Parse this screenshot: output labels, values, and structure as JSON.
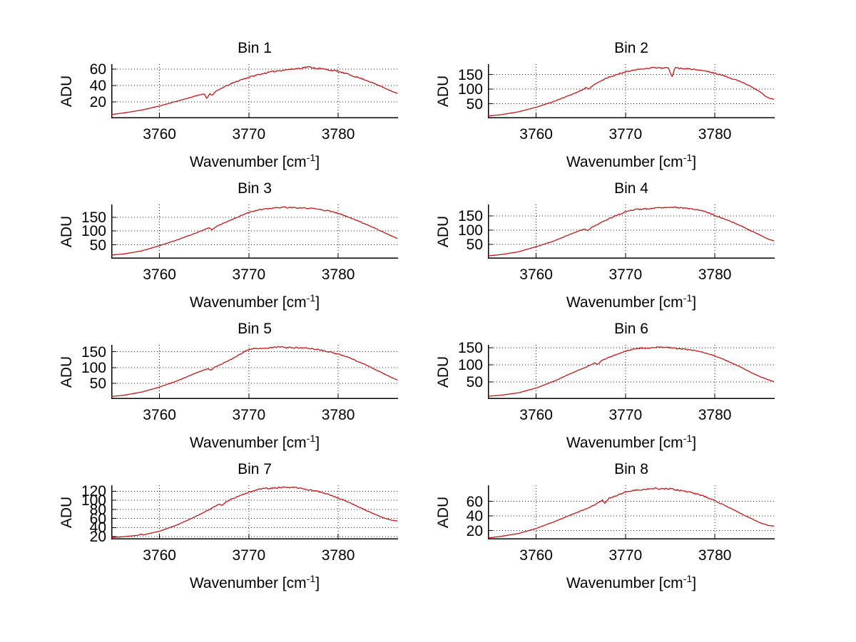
{
  "figure": {
    "background": "#ffffff",
    "line_color": "#c01616",
    "grid_color": "#000000",
    "text_color": "#000000",
    "ylabel": "ADU",
    "xlabel_prefix": "Wavenumber [cm",
    "xlabel_sup": "-1",
    "xlabel_suffix": "]",
    "x_ticks": [
      3760,
      3770,
      3780
    ],
    "x_range": [
      3754.6,
      3786.7
    ],
    "grid_style": "dotted",
    "layout": "4x2 subplots"
  },
  "chart_data": [
    {
      "type": "line",
      "title": "Bin 1",
      "ylabel": "ADU",
      "xlabel": "Wavenumber [cm^-1]",
      "x_range": [
        3754.6,
        3786.7
      ],
      "x_ticks": [
        3760,
        3770,
        3780
      ],
      "y_range": [
        0,
        66
      ],
      "y_ticks": [
        20,
        40,
        60
      ],
      "grid": true,
      "noise": 1.0,
      "seed": 11,
      "points": [
        [
          3754.6,
          4.5
        ],
        [
          3756,
          6.5
        ],
        [
          3758,
          10
        ],
        [
          3760,
          15
        ],
        [
          3762,
          21
        ],
        [
          3764,
          27
        ],
        [
          3765,
          30
        ],
        [
          3765.3,
          24
        ],
        [
          3765.6,
          30
        ],
        [
          3765.9,
          28
        ],
        [
          3766.2,
          32
        ],
        [
          3767,
          37
        ],
        [
          3768,
          42
        ],
        [
          3769,
          46.5
        ],
        [
          3770,
          50
        ],
        [
          3771,
          53
        ],
        [
          3772,
          55.5
        ],
        [
          3773,
          57.5
        ],
        [
          3774,
          59
        ],
        [
          3775,
          60
        ],
        [
          3776,
          61.5
        ],
        [
          3776.6,
          62.5
        ],
        [
          3777.3,
          61.5
        ],
        [
          3778,
          60.5
        ],
        [
          3779,
          59
        ],
        [
          3780,
          57
        ],
        [
          3781,
          54
        ],
        [
          3782,
          50.5
        ],
        [
          3783,
          47
        ],
        [
          3784,
          42.5
        ],
        [
          3785,
          38
        ],
        [
          3786,
          33
        ],
        [
          3786.7,
          30
        ]
      ]
    },
    {
      "type": "line",
      "title": "Bin 2",
      "ylabel": "ADU",
      "xlabel": "Wavenumber [cm^-1]",
      "x_range": [
        3754.6,
        3786.7
      ],
      "x_ticks": [
        3760,
        3770,
        3780
      ],
      "y_range": [
        0,
        186
      ],
      "y_ticks": [
        50,
        100,
        150
      ],
      "grid": true,
      "noise": 2.2,
      "seed": 23,
      "points": [
        [
          3754.6,
          8
        ],
        [
          3756,
          12
        ],
        [
          3758,
          22
        ],
        [
          3760,
          38
        ],
        [
          3762,
          58
        ],
        [
          3764,
          82
        ],
        [
          3765.2,
          98
        ],
        [
          3765.6,
          106
        ],
        [
          3765.9,
          99
        ],
        [
          3766.3,
          112
        ],
        [
          3767,
          124
        ],
        [
          3768,
          140
        ],
        [
          3769,
          150
        ],
        [
          3770,
          160
        ],
        [
          3771,
          166
        ],
        [
          3772,
          170
        ],
        [
          3773,
          174
        ],
        [
          3774,
          172
        ],
        [
          3774.8,
          174
        ],
        [
          3775.2,
          140
        ],
        [
          3775.5,
          173
        ],
        [
          3776,
          172
        ],
        [
          3777,
          170
        ],
        [
          3778,
          167
        ],
        [
          3779,
          162
        ],
        [
          3780,
          155
        ],
        [
          3781,
          146
        ],
        [
          3782,
          136
        ],
        [
          3783,
          124
        ],
        [
          3784,
          110
        ],
        [
          3785,
          92
        ],
        [
          3785.7,
          75
        ],
        [
          3786.2,
          68
        ],
        [
          3786.7,
          65
        ]
      ]
    },
    {
      "type": "line",
      "title": "Bin 3",
      "ylabel": "ADU",
      "xlabel": "Wavenumber [cm^-1]",
      "x_range": [
        3754.6,
        3786.7
      ],
      "x_ticks": [
        3760,
        3770,
        3780
      ],
      "y_range": [
        0,
        196
      ],
      "y_ticks": [
        50,
        100,
        150
      ],
      "grid": true,
      "noise": 2.2,
      "seed": 37,
      "points": [
        [
          3754.6,
          13
        ],
        [
          3756,
          17
        ],
        [
          3758,
          28
        ],
        [
          3760,
          47
        ],
        [
          3762,
          68
        ],
        [
          3764,
          92
        ],
        [
          3765.5,
          112
        ],
        [
          3765.9,
          104
        ],
        [
          3766.3,
          116
        ],
        [
          3767,
          126
        ],
        [
          3768,
          140
        ],
        [
          3769,
          155
        ],
        [
          3770,
          168
        ],
        [
          3771,
          176
        ],
        [
          3772,
          180
        ],
        [
          3773,
          184
        ],
        [
          3774,
          186
        ],
        [
          3775,
          184
        ],
        [
          3776,
          183
        ],
        [
          3777,
          182
        ],
        [
          3778,
          178
        ],
        [
          3779,
          172
        ],
        [
          3780,
          164
        ],
        [
          3781,
          152
        ],
        [
          3782,
          140
        ],
        [
          3783,
          126
        ],
        [
          3784,
          112
        ],
        [
          3785,
          97
        ],
        [
          3786,
          82
        ],
        [
          3786.7,
          72
        ]
      ]
    },
    {
      "type": "line",
      "title": "Bin 4",
      "ylabel": "ADU",
      "xlabel": "Wavenumber [cm^-1]",
      "x_range": [
        3754.6,
        3786.7
      ],
      "x_ticks": [
        3760,
        3770,
        3780
      ],
      "y_range": [
        0,
        190
      ],
      "y_ticks": [
        50,
        100,
        150
      ],
      "grid": true,
      "noise": 2.2,
      "seed": 41,
      "points": [
        [
          3754.6,
          10
        ],
        [
          3756,
          14
        ],
        [
          3758,
          24
        ],
        [
          3760,
          42
        ],
        [
          3762,
          62
        ],
        [
          3764,
          88
        ],
        [
          3765.4,
          104
        ],
        [
          3765.8,
          98
        ],
        [
          3766.2,
          110
        ],
        [
          3767,
          122
        ],
        [
          3768,
          138
        ],
        [
          3769,
          152
        ],
        [
          3770,
          164
        ],
        [
          3771,
          172
        ],
        [
          3772,
          174
        ],
        [
          3773,
          177
        ],
        [
          3774,
          179
        ],
        [
          3775,
          181
        ],
        [
          3776,
          179
        ],
        [
          3777,
          176
        ],
        [
          3778,
          172
        ],
        [
          3779,
          164
        ],
        [
          3780,
          152
        ],
        [
          3781,
          140
        ],
        [
          3782,
          128
        ],
        [
          3783,
          114
        ],
        [
          3784,
          98
        ],
        [
          3785,
          84
        ],
        [
          3786,
          68
        ],
        [
          3786.7,
          62
        ]
      ]
    },
    {
      "type": "line",
      "title": "Bin 5",
      "ylabel": "ADU",
      "xlabel": "Wavenumber [cm^-1]",
      "x_range": [
        3754.6,
        3786.7
      ],
      "x_ticks": [
        3760,
        3770,
        3780
      ],
      "y_range": [
        0,
        172
      ],
      "y_ticks": [
        50,
        100,
        150
      ],
      "grid": true,
      "noise": 1.8,
      "seed": 53,
      "points": [
        [
          3754.6,
          8
        ],
        [
          3756,
          12
        ],
        [
          3758,
          22
        ],
        [
          3760,
          38
        ],
        [
          3762,
          58
        ],
        [
          3764,
          82
        ],
        [
          3765.4,
          96
        ],
        [
          3765.8,
          92
        ],
        [
          3766.2,
          102
        ],
        [
          3767,
          112
        ],
        [
          3768,
          126
        ],
        [
          3769,
          142
        ],
        [
          3769.8,
          156
        ],
        [
          3770.5,
          160
        ],
        [
          3771,
          161
        ],
        [
          3772,
          162
        ],
        [
          3773,
          164
        ],
        [
          3773.5,
          166
        ],
        [
          3774,
          164
        ],
        [
          3775,
          163
        ],
        [
          3776,
          163
        ],
        [
          3777,
          160
        ],
        [
          3778,
          156
        ],
        [
          3779,
          150
        ],
        [
          3780,
          143
        ],
        [
          3781,
          134
        ],
        [
          3782,
          122
        ],
        [
          3783,
          110
        ],
        [
          3784,
          96
        ],
        [
          3785,
          82
        ],
        [
          3786,
          68
        ],
        [
          3786.7,
          60
        ]
      ]
    },
    {
      "type": "line",
      "title": "Bin 6",
      "ylabel": "ADU",
      "xlabel": "Wavenumber [cm^-1]",
      "x_range": [
        3754.6,
        3786.7
      ],
      "x_ticks": [
        3760,
        3770,
        3780
      ],
      "y_range": [
        0,
        158
      ],
      "y_ticks": [
        50,
        100,
        150
      ],
      "grid": true,
      "noise": 1.6,
      "seed": 67,
      "points": [
        [
          3754.6,
          8
        ],
        [
          3756,
          11
        ],
        [
          3758,
          18
        ],
        [
          3760,
          32
        ],
        [
          3762,
          52
        ],
        [
          3764,
          76
        ],
        [
          3766,
          98
        ],
        [
          3766.6,
          106
        ],
        [
          3766.9,
          100
        ],
        [
          3767.3,
          112
        ],
        [
          3768,
          120
        ],
        [
          3769,
          130
        ],
        [
          3770,
          140
        ],
        [
          3771,
          146
        ],
        [
          3771.8,
          149
        ],
        [
          3772.5,
          148
        ],
        [
          3773.5,
          152
        ],
        [
          3774,
          151
        ],
        [
          3775,
          150
        ],
        [
          3776,
          147
        ],
        [
          3777,
          144
        ],
        [
          3778,
          140
        ],
        [
          3779,
          134
        ],
        [
          3780,
          126
        ],
        [
          3781,
          116
        ],
        [
          3782,
          104
        ],
        [
          3783,
          92
        ],
        [
          3784,
          78
        ],
        [
          3785,
          66
        ],
        [
          3786,
          56
        ],
        [
          3786.7,
          50
        ]
      ]
    },
    {
      "type": "line",
      "title": "Bin 7",
      "ylabel": "ADU",
      "xlabel": "Wavenumber [cm^-1]",
      "x_range": [
        3754.6,
        3786.7
      ],
      "x_ticks": [
        3760,
        3770,
        3780
      ],
      "y_range": [
        14,
        133
      ],
      "y_ticks": [
        20,
        40,
        60,
        80,
        100,
        120
      ],
      "grid": true,
      "noise": 1.4,
      "seed": 79,
      "points": [
        [
          3754.6,
          18
        ],
        [
          3756,
          20
        ],
        [
          3757.6,
          23
        ],
        [
          3757.9,
          26
        ],
        [
          3758.2,
          24
        ],
        [
          3760,
          32
        ],
        [
          3762,
          46
        ],
        [
          3764,
          64
        ],
        [
          3766,
          84
        ],
        [
          3766.7,
          92
        ],
        [
          3767,
          88
        ],
        [
          3767.4,
          96
        ],
        [
          3768,
          102
        ],
        [
          3769,
          110
        ],
        [
          3770,
          118
        ],
        [
          3771,
          124
        ],
        [
          3772,
          126
        ],
        [
          3773,
          127
        ],
        [
          3773.8,
          129
        ],
        [
          3774.5,
          128
        ],
        [
          3775,
          128
        ],
        [
          3776,
          126
        ],
        [
          3777,
          122
        ],
        [
          3778,
          118
        ],
        [
          3779,
          112
        ],
        [
          3780,
          105
        ],
        [
          3781,
          97
        ],
        [
          3782,
          88
        ],
        [
          3783,
          79
        ],
        [
          3784,
          70
        ],
        [
          3785,
          62
        ],
        [
          3786,
          56
        ],
        [
          3786.7,
          54
        ]
      ]
    },
    {
      "type": "line",
      "title": "Bin 8",
      "ylabel": "ADU",
      "xlabel": "Wavenumber [cm^-1]",
      "x_range": [
        3754.6,
        3786.7
      ],
      "x_ticks": [
        3760,
        3770,
        3780
      ],
      "y_range": [
        8,
        82
      ],
      "y_ticks": [
        20,
        40,
        60
      ],
      "grid": true,
      "noise": 1.0,
      "seed": 97,
      "points": [
        [
          3754.6,
          10
        ],
        [
          3756,
          12
        ],
        [
          3758,
          16
        ],
        [
          3760,
          23
        ],
        [
          3762,
          32
        ],
        [
          3764,
          42
        ],
        [
          3765,
          47
        ],
        [
          3766,
          52
        ],
        [
          3767,
          58
        ],
        [
          3767.4,
          62
        ],
        [
          3767.7,
          57
        ],
        [
          3768.1,
          64
        ],
        [
          3769,
          68
        ],
        [
          3770,
          73
        ],
        [
          3771,
          75
        ],
        [
          3772,
          76
        ],
        [
          3773,
          78
        ],
        [
          3774,
          77
        ],
        [
          3775,
          77
        ],
        [
          3776,
          75
        ],
        [
          3777,
          73
        ],
        [
          3778,
          70
        ],
        [
          3779,
          66
        ],
        [
          3780,
          61
        ],
        [
          3781,
          55
        ],
        [
          3782,
          49
        ],
        [
          3783,
          43
        ],
        [
          3784,
          37
        ],
        [
          3785,
          31
        ],
        [
          3786,
          27
        ],
        [
          3786.7,
          26
        ]
      ]
    }
  ]
}
